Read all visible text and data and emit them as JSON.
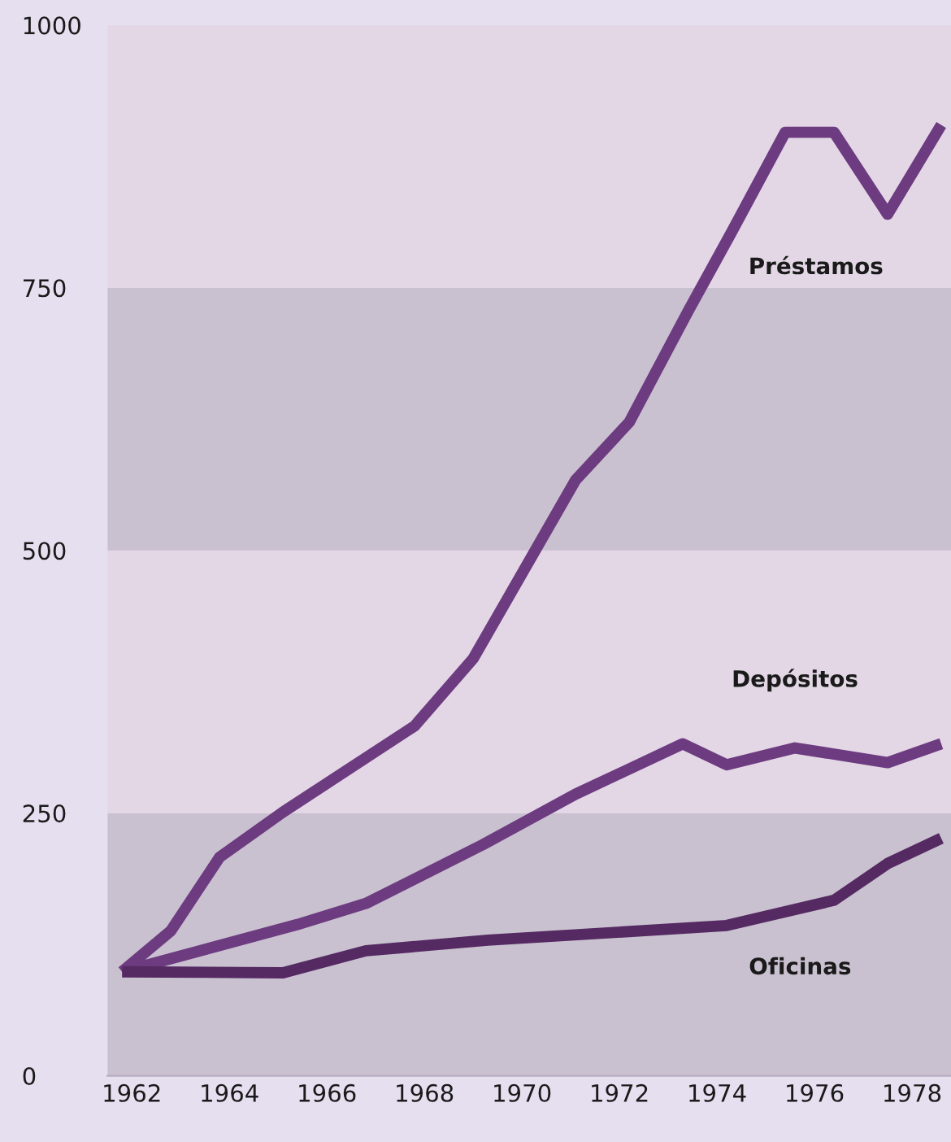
{
  "chart_data": {
    "type": "line",
    "xlim": [
      1961.5,
      1978.8
    ],
    "xticks": [
      1962,
      1964,
      1966,
      1968,
      1970,
      1972,
      1974,
      1976,
      1978
    ],
    "ylim": [
      0,
      1000
    ],
    "yticks": [
      0,
      250,
      500,
      750,
      1000
    ],
    "grid": false,
    "legend": false,
    "marker": "none",
    "line_style": "solid",
    "bands": [
      {
        "axis": "y",
        "from": 0,
        "to": 250,
        "color": "#c9c1d0"
      },
      {
        "axis": "y",
        "from": 250,
        "to": 500,
        "color": "#e3d7e6"
      },
      {
        "axis": "y",
        "from": 500,
        "to": 750,
        "color": "#c9c1d0"
      },
      {
        "axis": "y",
        "from": 750,
        "to": 1000,
        "color": "#e3d7e6"
      }
    ],
    "series": [
      {
        "name": "Préstamos",
        "color": "#6d3b80",
        "x": [
          1961.8,
          1962.8,
          1963.8,
          1965.1,
          1967.8,
          1969.0,
          1971.1,
          1972.2,
          1973.4,
          1974.3,
          1975.4,
          1976.4,
          1977.5,
          1978.6
        ],
        "values": [
          99,
          138,
          208,
          251,
          333,
          397,
          567,
          622,
          727,
          803,
          898,
          898,
          820,
          905
        ]
      },
      {
        "name": "Depósitos",
        "color": "#6d3b80",
        "x": [
          1961.8,
          1965.4,
          1966.8,
          1969.2,
          1971.1,
          1973.3,
          1974.2,
          1975.6,
          1977.5,
          1978.6
        ],
        "values": [
          99,
          144,
          164,
          220,
          268,
          316,
          296,
          312,
          298,
          316
        ]
      },
      {
        "name": "Oficinas",
        "color": "#552a62",
        "x": [
          1961.8,
          1965.1,
          1966.8,
          1969.3,
          1974.2,
          1976.4,
          1977.5,
          1978.6
        ],
        "values": [
          99,
          98,
          119,
          129,
          143,
          167,
          202,
          226
        ]
      }
    ]
  }
}
